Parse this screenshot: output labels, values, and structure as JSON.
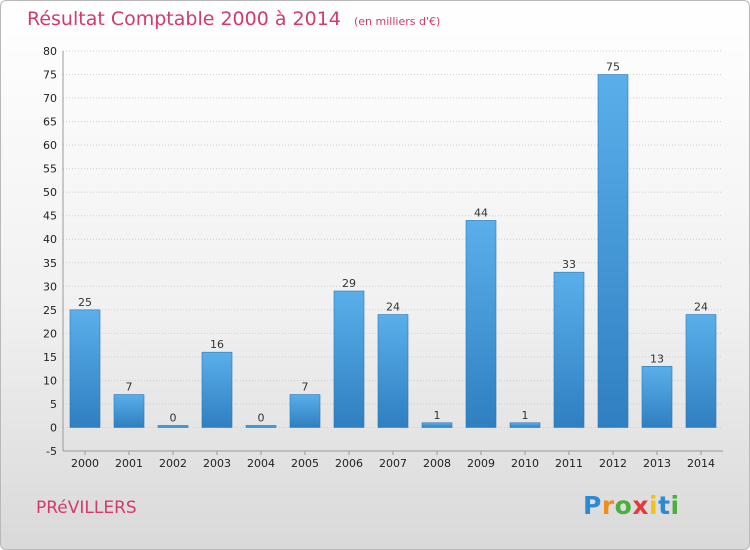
{
  "chart_data": {
    "type": "bar",
    "title": "Résultat Comptable 2000 à 2014",
    "subtitle": "(en milliers d'€)",
    "categories": [
      "2000",
      "2001",
      "2002",
      "2003",
      "2004",
      "2005",
      "2006",
      "2007",
      "2008",
      "2009",
      "2010",
      "2011",
      "2012",
      "2013",
      "2014"
    ],
    "values": [
      25,
      7,
      0,
      16,
      0,
      7,
      29,
      24,
      1,
      44,
      1,
      33,
      75,
      13,
      24
    ],
    "ylim": [
      -5,
      80
    ],
    "yticks": [
      -5,
      0,
      5,
      10,
      15,
      20,
      25,
      30,
      35,
      40,
      45,
      50,
      55,
      60,
      65,
      70,
      75,
      80
    ],
    "grid": true,
    "bar_color": "#4a9ee0"
  },
  "footer": {
    "place": "PRéVILLERS",
    "logo_letters": [
      "P",
      "r",
      "o",
      "x",
      "i",
      "t",
      "i"
    ],
    "logo_colors": [
      "#2a8ad6",
      "#f28c1e",
      "#4cae3c",
      "#e23b3b",
      "#f2c21b",
      "#2a8ad6",
      "#4cae3c"
    ]
  }
}
